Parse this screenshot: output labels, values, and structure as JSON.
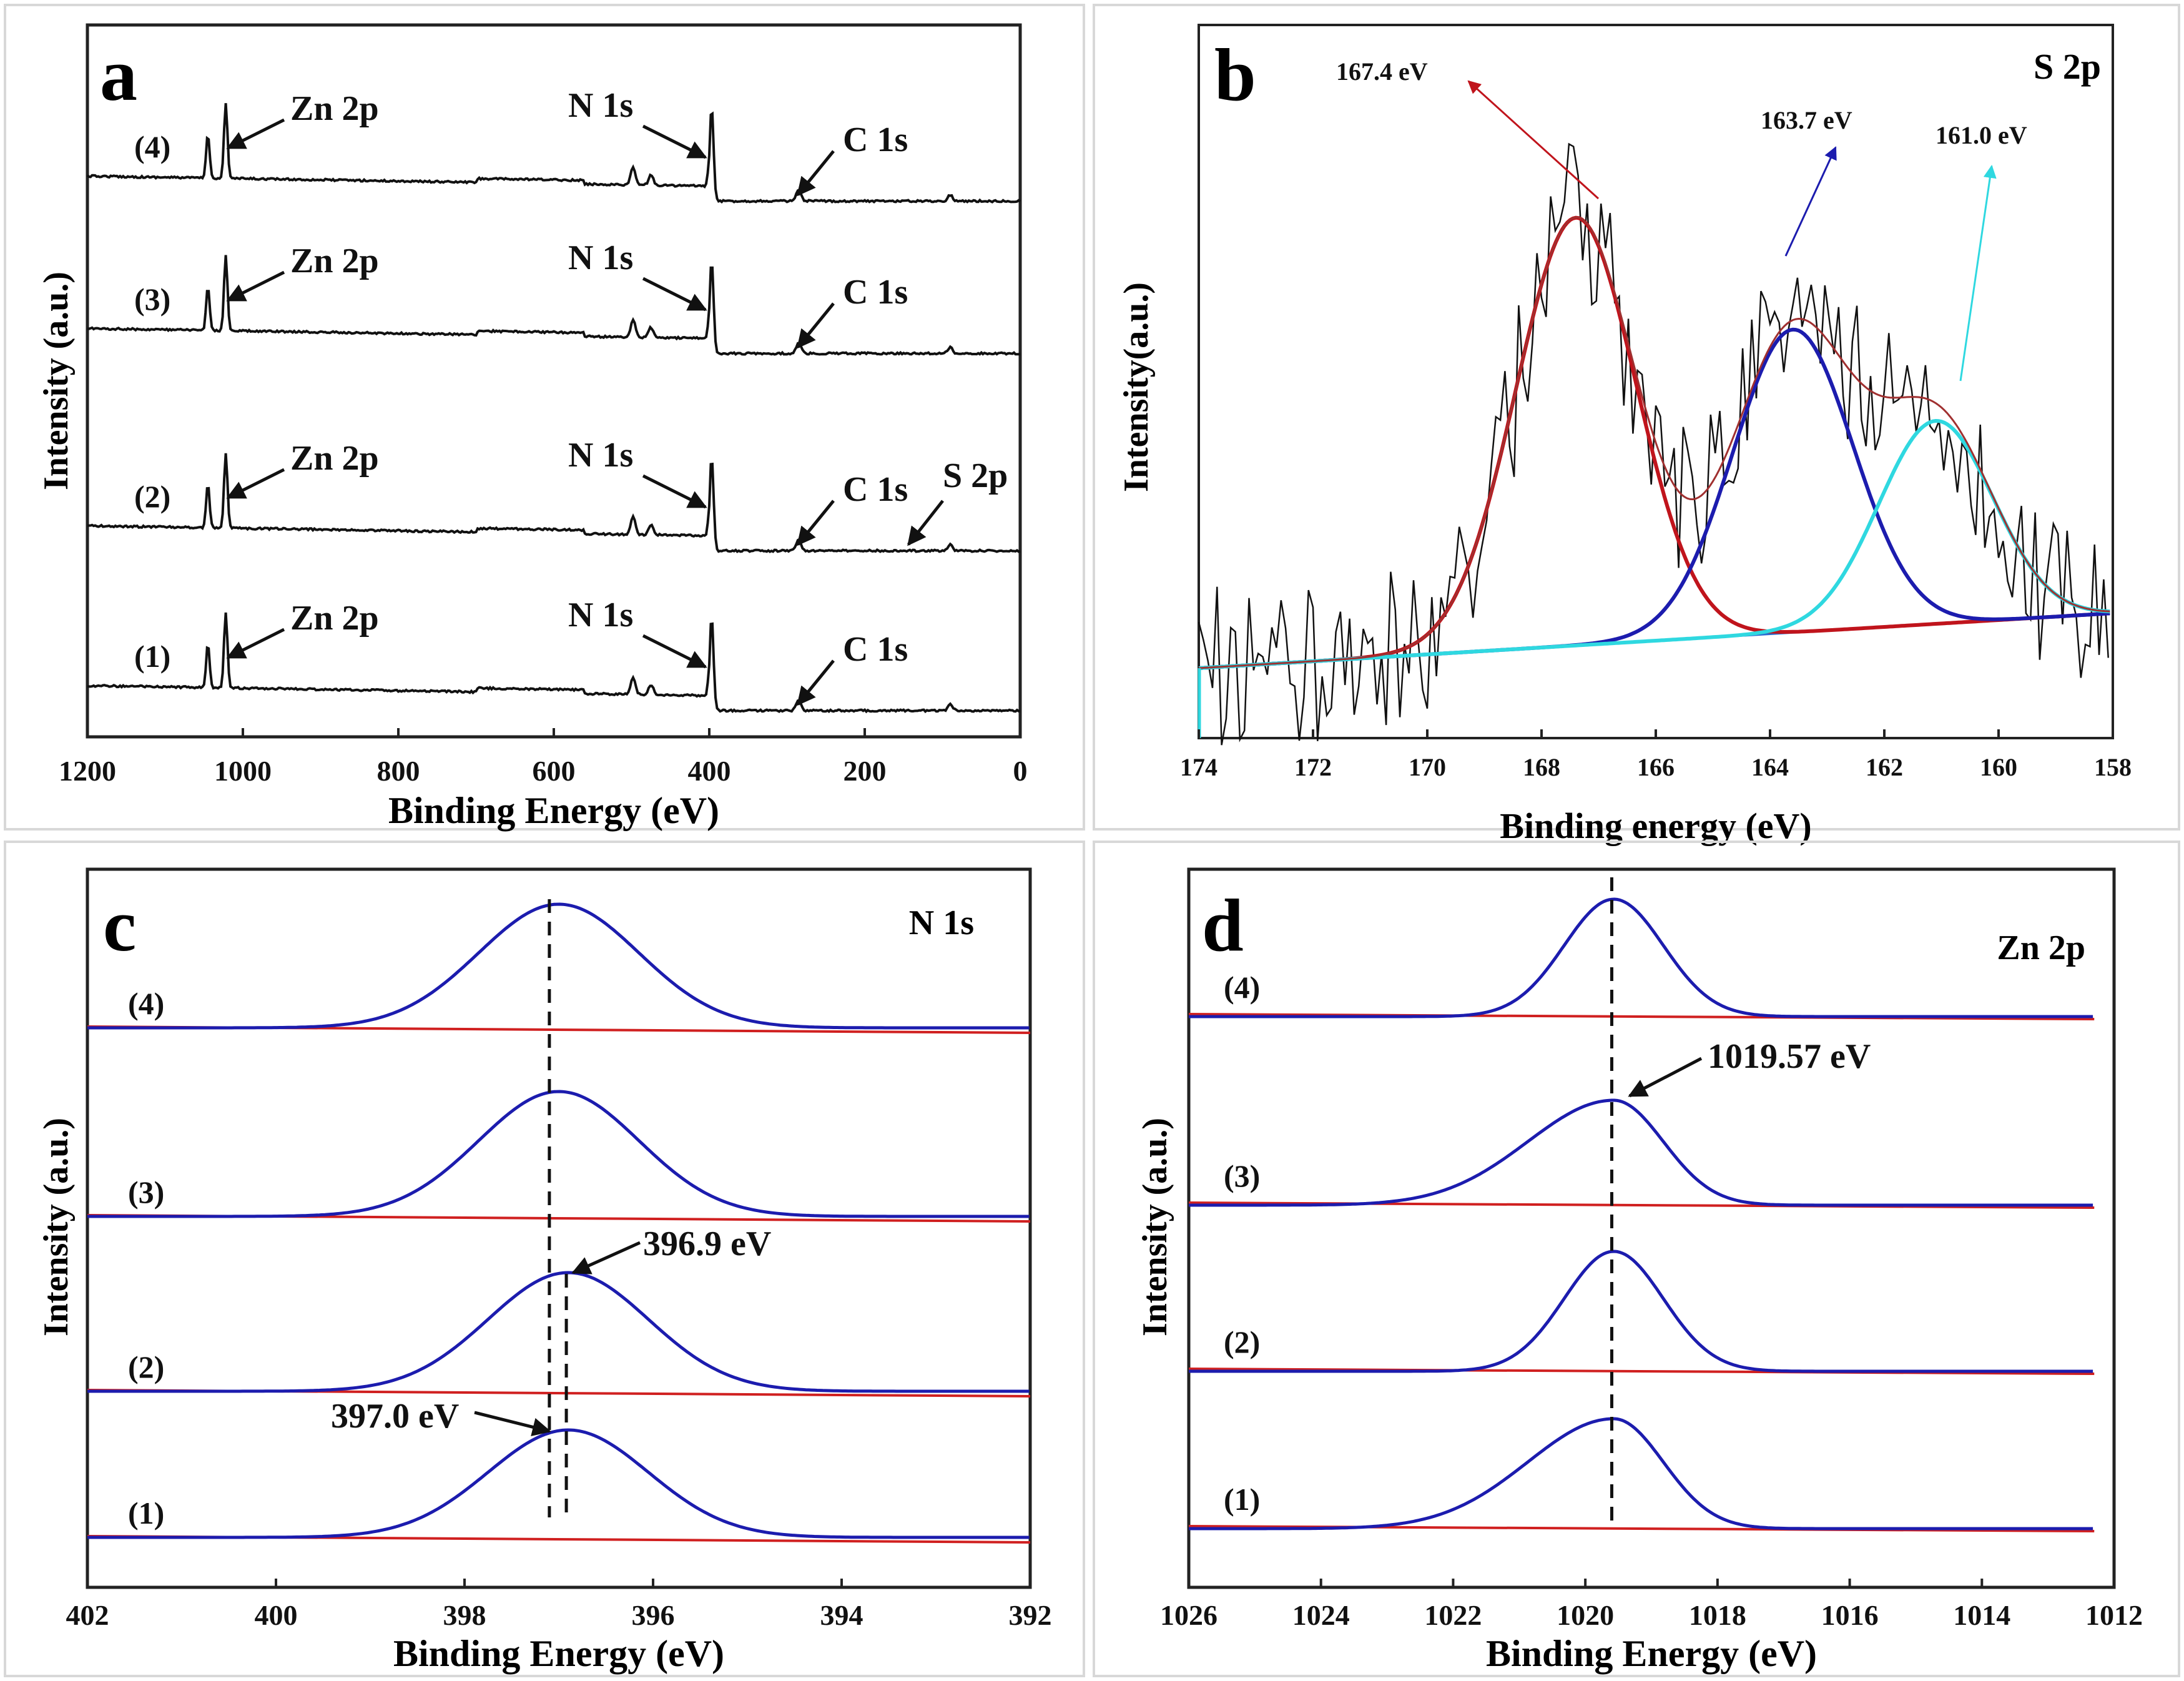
{
  "figure": {
    "panels": [
      "a",
      "b",
      "c",
      "d"
    ]
  },
  "chart_data": [
    {
      "panel": "a",
      "type": "line",
      "title": "",
      "xlabel": "Binding Energy (eV)",
      "ylabel": "Intensity (a.u.)",
      "xlim": [
        1200,
        0
      ],
      "x_ticks": [
        "1200",
        "1000",
        "800",
        "600",
        "400",
        "200",
        "0"
      ],
      "x_tick_values": [
        1200,
        1000,
        800,
        600,
        400,
        200,
        0
      ],
      "series_labels": [
        "(4)",
        "(3)",
        "(2)",
        "(1)"
      ],
      "annotations": [
        {
          "series": "(4)",
          "labels": [
            "Zn 2p",
            "N 1s",
            "C 1s"
          ]
        },
        {
          "series": "(3)",
          "labels": [
            "Zn 2p",
            "N 1s",
            "C 1s"
          ]
        },
        {
          "series": "(2)",
          "labels": [
            "Zn 2p",
            "N 1s",
            "C 1s",
            "S 2p"
          ]
        },
        {
          "series": "(1)",
          "labels": [
            "Zn 2p",
            "N 1s",
            "C 1s"
          ]
        }
      ],
      "peaks_eV": {
        "Zn 2p": 1022,
        "N 1s": 397,
        "C 1s": 285,
        "S 2p": 163
      }
    },
    {
      "panel": "b",
      "type": "line",
      "title": "S 2p",
      "xlabel": "Binding energy (eV)",
      "ylabel": "Intensity(a.u.)",
      "xlim": [
        174,
        158
      ],
      "x_ticks": [
        "174",
        "172",
        "170",
        "168",
        "166",
        "164",
        "162",
        "160",
        "158"
      ],
      "x_tick_values": [
        174,
        172,
        170,
        168,
        166,
        164,
        162,
        160,
        158
      ],
      "series": [
        {
          "name": "fit 167.4 eV",
          "center": 167.4,
          "color": "#c0141c"
        },
        {
          "name": "fit 163.7 eV",
          "center": 163.7,
          "color": "#1c1cae"
        },
        {
          "name": "fit 161.0 eV",
          "center": 161.0,
          "color": "#2fd8e0"
        }
      ],
      "annotations": [
        "167.4 eV",
        "163.7 eV",
        "161.0 eV"
      ]
    },
    {
      "panel": "c",
      "type": "line",
      "title": "N 1s",
      "xlabel": "Binding Energy (eV)",
      "ylabel": "Intensity (a.u.)",
      "xlim": [
        402,
        392
      ],
      "x_ticks": [
        "402",
        "400",
        "398",
        "396",
        "394",
        "392"
      ],
      "x_tick_values": [
        402,
        400,
        398,
        396,
        394,
        392
      ],
      "series_labels": [
        "(4)",
        "(3)",
        "(2)",
        "(1)"
      ],
      "peak_centers": [
        397.0,
        397.0,
        396.9,
        396.9
      ],
      "annotations": [
        "396.9 eV",
        "397.0 eV"
      ]
    },
    {
      "panel": "d",
      "type": "line",
      "title": "Zn 2p",
      "xlabel": "Binding Energy (eV)",
      "ylabel": "Intensity (a.u.)",
      "xlim": [
        1026,
        1012
      ],
      "x_ticks": [
        "1026",
        "1024",
        "1022",
        "1020",
        "1018",
        "1016",
        "1014",
        "1012"
      ],
      "x_tick_values": [
        1026,
        1024,
        1022,
        1020,
        1018,
        1016,
        1014,
        1012
      ],
      "series_labels": [
        "(4)",
        "(3)",
        "(2)",
        "(1)"
      ],
      "peak_centers": [
        1019.57,
        1019.57,
        1019.57,
        1019.57
      ],
      "annotations": [
        "1019.57 eV"
      ]
    }
  ],
  "colors": {
    "fit_blue": "#1c1cae",
    "baseline_red": "#d02020",
    "fit_red": "#c0141c",
    "fit_cyan": "#2fd8e0",
    "axis": "#222222",
    "frame": "#d8d8d8"
  }
}
